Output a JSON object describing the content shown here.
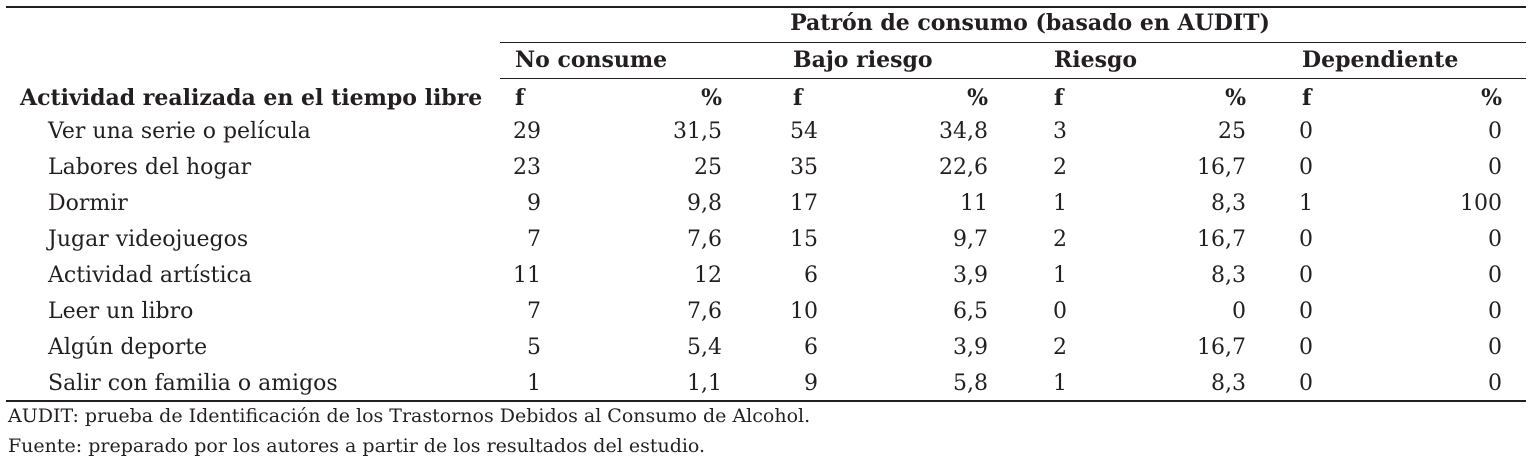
{
  "table": {
    "spanner": "Patrón de consumo (basado en AUDIT)",
    "row_header": "Actividad realizada en el tiempo libre",
    "groups": [
      "No consume",
      "Bajo riesgo",
      "Riesgo",
      "Dependiente"
    ],
    "sub_f": "f",
    "sub_pct": "%",
    "rows": [
      {
        "label": "Ver una serie o película",
        "values": [
          "29",
          "31,5",
          "54",
          "34,8",
          "3",
          "25",
          "0",
          "0"
        ]
      },
      {
        "label": "Labores del hogar",
        "values": [
          "23",
          "25",
          "35",
          "22,6",
          "2",
          "16,7",
          "0",
          "0"
        ]
      },
      {
        "label": "Dormir",
        "values": [
          "9",
          "9,8",
          "17",
          "11",
          "1",
          "8,3",
          "1",
          "100"
        ]
      },
      {
        "label": "Jugar videojuegos",
        "values": [
          "7",
          "7,6",
          "15",
          "9,7",
          "2",
          "16,7",
          "0",
          "0"
        ]
      },
      {
        "label": "Actividad artística",
        "values": [
          "11",
          "12",
          "6",
          "3,9",
          "1",
          "8,3",
          "0",
          "0"
        ]
      },
      {
        "label": "Leer un libro",
        "values": [
          "7",
          "7,6",
          "10",
          "6,5",
          "0",
          "0",
          "0",
          "0"
        ]
      },
      {
        "label": "Algún deporte",
        "values": [
          "5",
          "5,4",
          "6",
          "3,9",
          "2",
          "16,7",
          "0",
          "0"
        ]
      },
      {
        "label": "Salir con familia o amigos",
        "values": [
          "1",
          "1,1",
          "9",
          "5,8",
          "1",
          "8,3",
          "0",
          "0"
        ]
      }
    ]
  },
  "footnotes": [
    "AUDIT: prueba de Identificación de los Trastornos Debidos al Consumo de Alcohol.",
    "Fuente: preparado por los autores a partir de los resultados del estudio."
  ]
}
